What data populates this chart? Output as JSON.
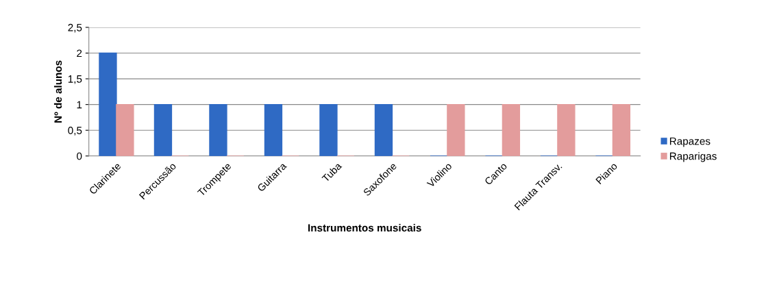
{
  "chart_data": {
    "type": "bar",
    "categories": [
      "Clarinete",
      "Percussão",
      "Trompete",
      "Guitarra",
      "Tuba",
      "Saxofone",
      "Violino",
      "Canto",
      "Flauta Transv.",
      "Piano"
    ],
    "series": [
      {
        "name": "Rapazes",
        "color": "#2f6ac4",
        "values": [
          2,
          1,
          1,
          1,
          1,
          1,
          0,
          0,
          0,
          0
        ]
      },
      {
        "name": "Raparigas",
        "color": "#e39c9c",
        "values": [
          1,
          0,
          0,
          0,
          0,
          0,
          1,
          1,
          1,
          1
        ]
      }
    ],
    "xlabel": "Instrumentos musicais",
    "ylabel": "Nº de alunos",
    "ylim": [
      0,
      2.5
    ],
    "yticks": [
      0,
      {
        "value": 0.5,
        "label": "0,5"
      },
      1,
      {
        "value": 1.5,
        "label": "1,5"
      },
      2,
      {
        "value": 2.5,
        "label": "2,5"
      }
    ],
    "grid": "y",
    "legend": "right"
  }
}
